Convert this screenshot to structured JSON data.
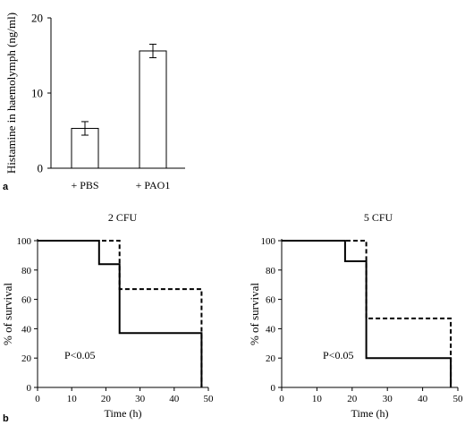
{
  "panel_labels": {
    "a": "a",
    "b": "b"
  },
  "chart_data": [
    {
      "type": "bar",
      "title": "",
      "xlabel": "",
      "ylabel": "Histamine in haemolymph (ng/ml)",
      "categories": [
        "+ PBS",
        "+ PAO1"
      ],
      "values": [
        5.3,
        15.6
      ],
      "errors": [
        0.9,
        0.9
      ],
      "ylim": [
        0,
        20
      ],
      "yticks": [
        0,
        10,
        20
      ],
      "bar_fill": "#ffffff",
      "bar_stroke": "#000000"
    },
    {
      "type": "line",
      "step": true,
      "title": "2 CFU",
      "xlabel": "Time (h)",
      "ylabel": "% of survival",
      "xlim": [
        0,
        50
      ],
      "ylim": [
        0,
        100
      ],
      "xticks": [
        0,
        10,
        20,
        30,
        40,
        50
      ],
      "yticks": [
        0,
        20,
        40,
        60,
        80,
        100
      ],
      "annotation": "P<0.05",
      "series": [
        {
          "style": "solid",
          "x": [
            0,
            18,
            18,
            24,
            24,
            48,
            48
          ],
          "y": [
            100,
            100,
            84,
            84,
            37,
            37,
            0
          ]
        },
        {
          "style": "dashed",
          "x": [
            0,
            24,
            24,
            48,
            48
          ],
          "y": [
            100,
            100,
            67,
            67,
            0
          ]
        }
      ]
    },
    {
      "type": "line",
      "step": true,
      "title": "5 CFU",
      "xlabel": "Time (h)",
      "ylabel": "% of survival",
      "xlim": [
        0,
        50
      ],
      "ylim": [
        0,
        100
      ],
      "xticks": [
        0,
        10,
        20,
        30,
        40,
        50
      ],
      "yticks": [
        0,
        20,
        40,
        60,
        80,
        100
      ],
      "annotation": "P<0.05",
      "series": [
        {
          "style": "solid",
          "x": [
            0,
            18,
            18,
            24,
            24,
            48,
            48
          ],
          "y": [
            100,
            100,
            86,
            86,
            20,
            20,
            0
          ]
        },
        {
          "style": "dashed",
          "x": [
            0,
            24,
            24,
            48,
            48
          ],
          "y": [
            100,
            100,
            47,
            47,
            0
          ]
        }
      ]
    }
  ]
}
